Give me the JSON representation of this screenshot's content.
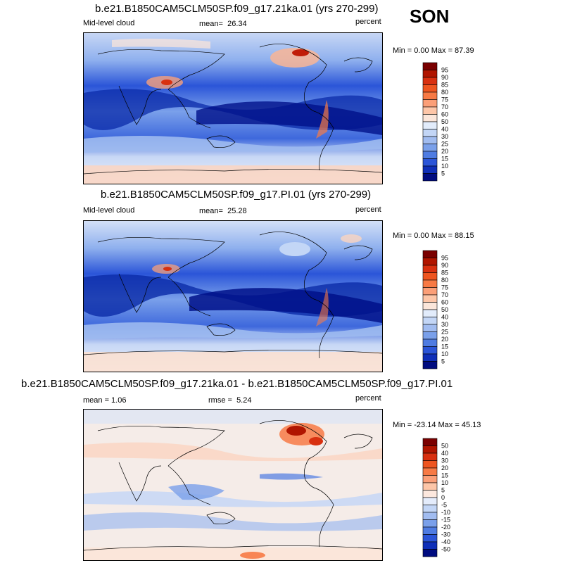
{
  "season": "SON",
  "panels": [
    {
      "title": "b.e21.B1850CAM5CLM50SP.f09_g17.21ka.01 (yrs 270-299)",
      "left_label": "Mid-level cloud",
      "stat_label": "mean=",
      "stat_value": "26.34",
      "units": "percent",
      "minmax": "Min =  0.00 Max =  87.39",
      "ramp": "cloud"
    },
    {
      "title": "b.e21.B1850CAM5CLM50SP.f09_g17.PI.01 (yrs 270-299)",
      "left_label": "Mid-level cloud",
      "stat_label": "mean=",
      "stat_value": "25.28",
      "units": "percent",
      "minmax": "Min =  0.00 Max =  88.15",
      "ramp": "cloud"
    },
    {
      "title": "b.e21.B1850CAM5CLM50SP.f09_g17.21ka.01 - b.e21.B1850CAM5CLM50SP.f09_g17.PI.01",
      "left_label": "mean =   1.06",
      "stat_label": "rmse =",
      "stat_value": "5.24",
      "units": "percent",
      "minmax": "Min = -23.14 Max =  45.13",
      "ramp": "diff"
    }
  ],
  "colorbars": {
    "cloud": {
      "labels": [
        "95",
        "90",
        "85",
        "80",
        "75",
        "70",
        "60",
        "50",
        "40",
        "30",
        "25",
        "20",
        "15",
        "10",
        "5"
      ],
      "colors": [
        "#7a0000",
        "#b01500",
        "#d83010",
        "#ee5520",
        "#f77a45",
        "#fb9f78",
        "#fdc6a8",
        "#fbe6da",
        "#e2ecfb",
        "#c3d6f6",
        "#a1bcf0",
        "#7aa0ea",
        "#4f7ce2",
        "#2b55d8",
        "#0f2fb8",
        "#000c80"
      ]
    },
    "diff": {
      "labels": [
        "50",
        "40",
        "30",
        "20",
        "15",
        "10",
        "5",
        "0",
        "-5",
        "-10",
        "-15",
        "-20",
        "-30",
        "-40",
        "-50"
      ],
      "colors": [
        "#7a0000",
        "#b01500",
        "#d83010",
        "#ee5520",
        "#f77a45",
        "#fb9f78",
        "#fdc6a8",
        "#fde8de",
        "#e4ecfb",
        "#c3d6f6",
        "#a1bcf0",
        "#7aa0ea",
        "#4f7ce2",
        "#2b55d8",
        "#0f2fb8",
        "#000c80"
      ]
    }
  }
}
